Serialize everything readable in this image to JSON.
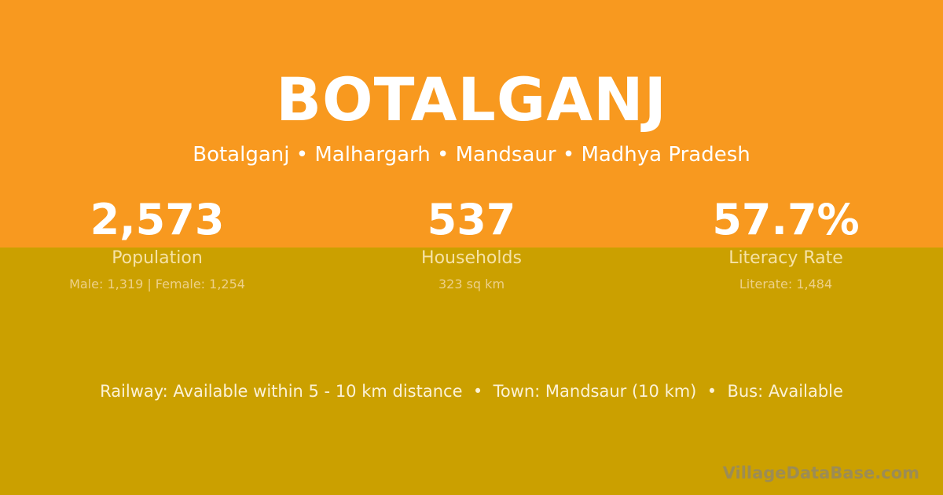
{
  "colors": {
    "top_bg": "#F8991F",
    "bottom_bg": "#CBA000"
  },
  "title": "BOTALGANJ",
  "subtitle": "Botalganj • Malhargarh • Mandsaur • Madhya Pradesh",
  "stats": [
    {
      "value": "2,573",
      "label": "Population",
      "sub": "Male: 1,319 | Female: 1,254"
    },
    {
      "value": "537",
      "label": "Households",
      "sub": "323 sq km"
    },
    {
      "value": "57.7%",
      "label": "Literacy Rate",
      "sub": "Literate: 1,484"
    }
  ],
  "info": "Railway: Available within 5 - 10 km distance  •  Town: Mandsaur (10 km)  •  Bus: Available",
  "watermark": "VillageDataBase.com"
}
